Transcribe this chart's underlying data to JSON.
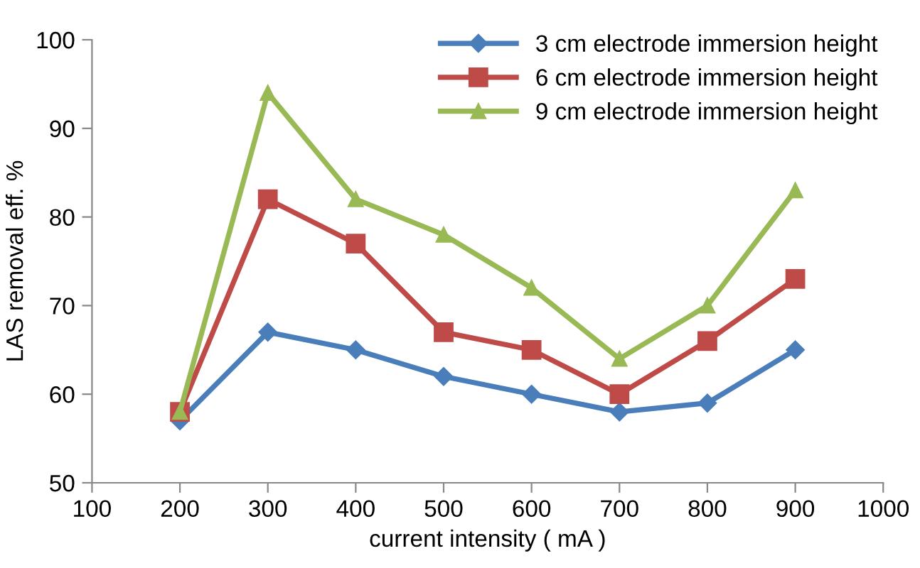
{
  "chart_data": {
    "type": "line",
    "xlabel": "current intensity ( mA )",
    "ylabel": "LAS removal eff. %",
    "x": [
      200,
      300,
      400,
      500,
      600,
      700,
      800,
      900
    ],
    "series": [
      {
        "name": "3 cm electrode immersion height",
        "color": "#4a7ebb",
        "marker": "diamond",
        "values": [
          57,
          67,
          65,
          62,
          60,
          58,
          59,
          65
        ]
      },
      {
        "name": "6 cm electrode immersion height",
        "color": "#be4b48",
        "marker": "square",
        "values": [
          58,
          82,
          77,
          67,
          65,
          60,
          66,
          73
        ]
      },
      {
        "name": "9 cm electrode immersion height",
        "color": "#98b954",
        "marker": "triangle",
        "values": [
          58,
          94,
          82,
          78,
          72,
          64,
          70,
          83
        ]
      }
    ],
    "xlim": [
      100,
      1000
    ],
    "xticks": [
      100,
      200,
      300,
      400,
      500,
      600,
      700,
      800,
      900,
      1000
    ],
    "ylim": [
      50,
      100
    ],
    "yticks": [
      50,
      60,
      70,
      80,
      90,
      100
    ],
    "grid": false,
    "legend": "top right",
    "line_style": "solid"
  }
}
